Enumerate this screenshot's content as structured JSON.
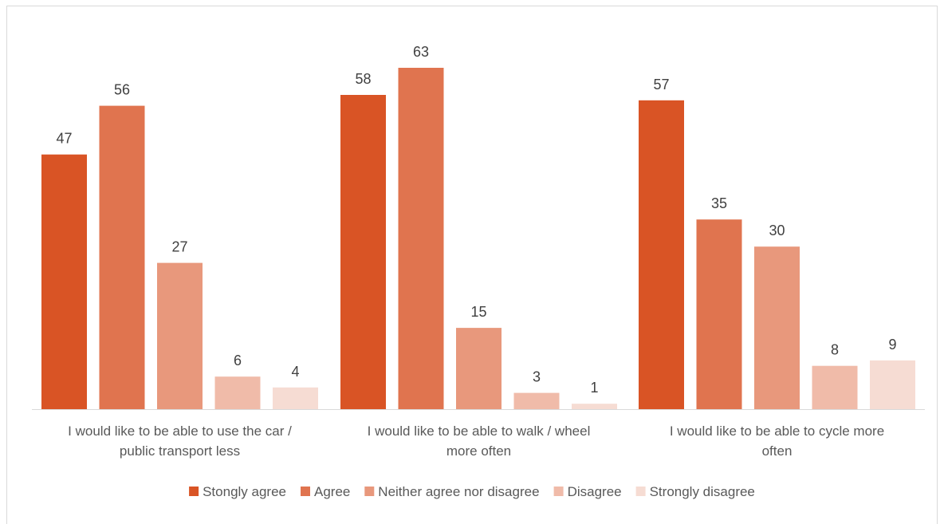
{
  "chart_data": {
    "type": "bar",
    "categories": [
      "I would like to be able to use the car / public transport less",
      "I would like to be able to walk / wheel more often",
      "I would like to be able to cycle more often"
    ],
    "category_lines": [
      [
        "I would like to be able to use the car /",
        "public transport less"
      ],
      [
        "I would like to be able to walk / wheel",
        "more often"
      ],
      [
        "I would like to be able to cycle more",
        "often"
      ]
    ],
    "series": [
      {
        "name": "Stongly agree",
        "color": "#d95425",
        "values": [
          47,
          58,
          57
        ]
      },
      {
        "name": "Agree",
        "color": "#e0744f",
        "values": [
          56,
          63,
          35
        ]
      },
      {
        "name": "Neither agree nor disagree",
        "color": "#e8987c",
        "values": [
          27,
          15,
          30
        ]
      },
      {
        "name": "Disagree",
        "color": "#f0bba9",
        "values": [
          6,
          3,
          8
        ]
      },
      {
        "name": "Strongly disagree",
        "color": "#f6dcd3",
        "values": [
          4,
          1,
          9
        ]
      }
    ],
    "ylim": [
      0,
      63
    ],
    "legend_position": "bottom",
    "grid": false
  }
}
